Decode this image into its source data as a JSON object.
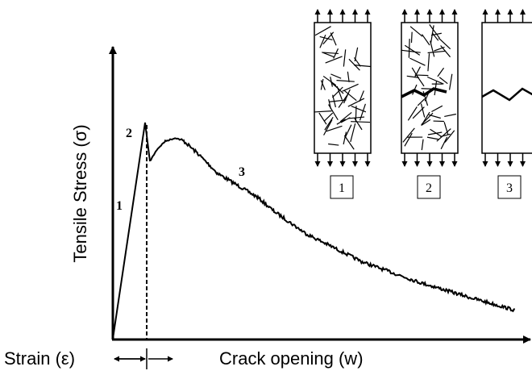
{
  "axes": {
    "y_label": "Tensile Stress (σ)",
    "x_label": "Crack opening (w)",
    "strain_label": "Strain (ε)"
  },
  "curve_labels": [
    "1",
    "2",
    "3"
  ],
  "panels": [
    {
      "label": "1"
    },
    {
      "label": "2"
    },
    {
      "label": "3"
    }
  ]
}
